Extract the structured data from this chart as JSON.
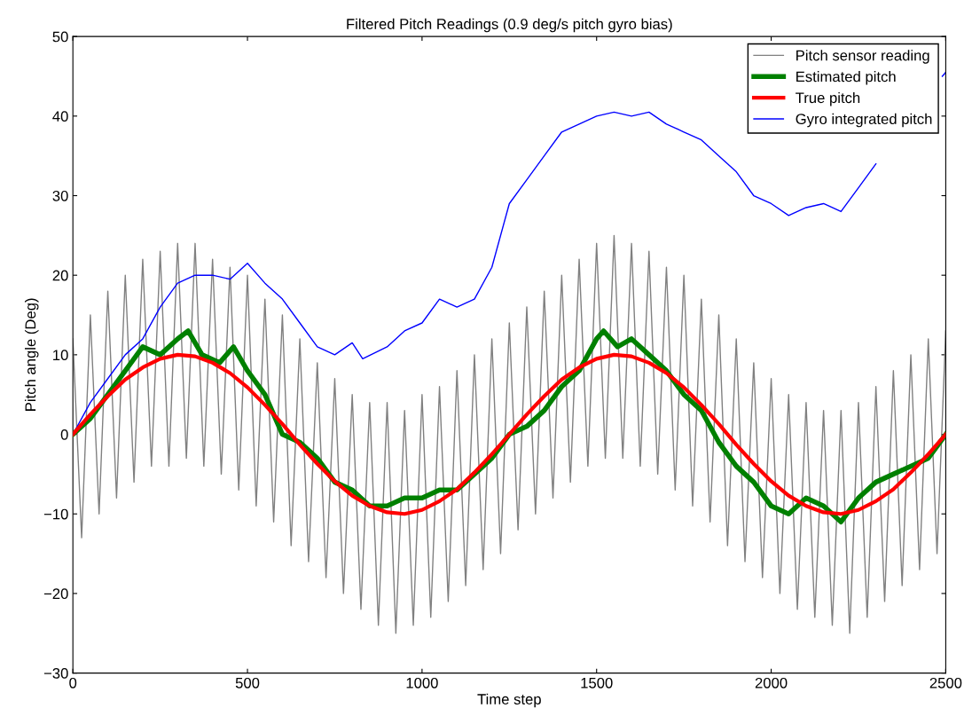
{
  "chart_data": {
    "type": "line",
    "title": "Filtered Pitch Readings (0.9 deg/s pitch gyro bias)",
    "xlabel": "Time step",
    "ylabel": "Pitch angle (Deg)",
    "xlim": [
      0,
      2500
    ],
    "xticks": [
      0,
      500,
      1000,
      1500,
      2000,
      2500
    ],
    "ylim": [
      -30,
      50
    ],
    "yticks": [
      {
        "value": -30,
        "label": "−30"
      },
      {
        "value": -20,
        "label": "−20"
      },
      {
        "value": -10,
        "label": "−10"
      },
      0,
      10,
      20,
      30,
      40,
      50
    ],
    "grid": false,
    "legend": "top right",
    "marker": "none",
    "line_style": "solid",
    "series": [
      {
        "name": "Pitch sensor reading",
        "color": "#808080",
        "x": [
          0,
          25,
          50,
          75,
          100,
          125,
          150,
          175,
          200,
          225,
          250,
          275,
          300,
          325,
          350,
          375,
          400,
          425,
          450,
          475,
          500,
          525,
          550,
          575,
          600,
          625,
          650,
          675,
          700,
          725,
          750,
          775,
          800,
          825,
          850,
          875,
          900,
          925,
          950,
          975,
          1000,
          1025,
          1050,
          1075,
          1100,
          1125,
          1150,
          1175,
          1200,
          1225,
          1250,
          1275,
          1300,
          1325,
          1350,
          1375,
          1400,
          1425,
          1450,
          1475,
          1500,
          1525,
          1550,
          1575,
          1600,
          1625,
          1650,
          1675,
          1700,
          1725,
          1750,
          1775,
          1800,
          1825,
          1850,
          1875,
          1900,
          1925,
          1950,
          1975,
          2000,
          2025,
          2050,
          2075,
          2100,
          2125,
          2150,
          2175,
          2200,
          2225,
          2250,
          2275,
          2300,
          2325,
          2350,
          2375,
          2400,
          2425,
          2450,
          2475,
          2500
        ],
        "values": [
          12,
          -13,
          15,
          -10,
          18,
          -8,
          20,
          -6,
          22,
          -4,
          23,
          -4,
          24,
          -3,
          24,
          -4,
          22,
          -5,
          21,
          -7,
          20,
          -9,
          17,
          -11,
          15,
          -14,
          12,
          -16,
          9,
          -18,
          7,
          -20,
          5,
          -22,
          4,
          -24,
          4,
          -25,
          3,
          -24,
          5,
          -23,
          6,
          -21,
          8,
          -19,
          10,
          -17,
          12,
          -15,
          14,
          -12,
          16,
          -10,
          18,
          -8,
          20,
          -6,
          22,
          -4,
          24,
          -3,
          25,
          -3,
          24,
          -4,
          23,
          -5,
          21,
          -7,
          20,
          -9,
          17,
          -11,
          15,
          -14,
          12,
          -16,
          9,
          -18,
          7,
          -20,
          5,
          -22,
          4,
          -23,
          3,
          -24,
          3,
          -25,
          4,
          -23,
          6,
          -21,
          8,
          -19,
          10,
          -17,
          12,
          -15,
          13
        ]
      },
      {
        "name": "Estimated pitch",
        "color": "#008000",
        "x": [
          0,
          50,
          100,
          150,
          200,
          250,
          300,
          330,
          370,
          420,
          460,
          500,
          550,
          600,
          650,
          700,
          750,
          800,
          850,
          900,
          950,
          1000,
          1050,
          1100,
          1150,
          1200,
          1250,
          1300,
          1350,
          1400,
          1450,
          1500,
          1520,
          1560,
          1600,
          1650,
          1700,
          1750,
          1800,
          1850,
          1900,
          1950,
          2000,
          2050,
          2100,
          2150,
          2200,
          2250,
          2300,
          2350,
          2400,
          2450,
          2500
        ],
        "values": [
          0,
          2,
          5,
          8,
          11,
          10,
          12,
          13,
          10,
          9,
          11,
          8,
          5,
          0,
          -1,
          -3,
          -6,
          -7,
          -9,
          -9,
          -8,
          -8,
          -7,
          -7,
          -5,
          -3,
          0,
          1,
          3,
          6,
          8,
          12,
          13,
          11,
          12,
          10,
          8,
          5,
          3,
          -1,
          -4,
          -6,
          -9,
          -10,
          -8,
          -9,
          -11,
          -8,
          -6,
          -5,
          -4,
          -3,
          0
        ]
      },
      {
        "name": "True pitch",
        "color": "#ff0000",
        "x": [
          0,
          50,
          100,
          150,
          200,
          250,
          300,
          350,
          400,
          450,
          500,
          550,
          600,
          650,
          700,
          750,
          800,
          850,
          900,
          950,
          1000,
          1050,
          1100,
          1150,
          1200,
          1250,
          1300,
          1350,
          1400,
          1450,
          1500,
          1550,
          1600,
          1650,
          1700,
          1750,
          1800,
          1850,
          1900,
          1950,
          2000,
          2050,
          2100,
          2150,
          2200,
          2250,
          2300,
          2350,
          2400,
          2450,
          2500
        ],
        "values": [
          0,
          2.5,
          4.8,
          6.9,
          8.4,
          9.5,
          10,
          9.8,
          9,
          7.7,
          5.9,
          3.7,
          1.3,
          -1.3,
          -3.7,
          -5.9,
          -7.7,
          -9,
          -9.8,
          -10,
          -9.5,
          -8.4,
          -6.9,
          -4.8,
          -2.5,
          0,
          2.5,
          4.8,
          6.9,
          8.4,
          9.5,
          10,
          9.8,
          9,
          7.7,
          5.9,
          3.7,
          1.3,
          -1.3,
          -3.7,
          -5.9,
          -7.7,
          -9,
          -9.8,
          -10,
          -9.5,
          -8.4,
          -6.9,
          -4.8,
          -2.5,
          0
        ]
      },
      {
        "name": "Gyro integrated pitch",
        "color": "#0000ff",
        "x": [
          0,
          50,
          100,
          150,
          200,
          250,
          300,
          350,
          400,
          450,
          500,
          550,
          600,
          650,
          700,
          750,
          800,
          830,
          900,
          950,
          1000,
          1050,
          1100,
          1150,
          1200,
          1250,
          1300,
          1350,
          1400,
          1450,
          1500,
          1550,
          1600,
          1650,
          1700,
          1750,
          1800,
          1850,
          1900,
          1950,
          2000,
          2050,
          2100,
          2150,
          2200,
          2250,
          2300,
          2350,
          2400,
          2450,
          2490,
          2500
        ],
        "values": [
          0,
          4,
          7,
          10,
          12,
          16,
          19,
          20,
          20,
          19.5,
          21.5,
          19,
          17,
          14,
          11,
          10,
          11.5,
          9.5,
          11,
          13,
          14,
          17,
          16,
          17,
          21,
          29,
          32,
          35,
          38,
          39,
          40,
          40.5,
          40,
          40.5,
          39,
          38,
          37,
          35,
          33,
          30,
          29,
          27.5,
          28.5,
          29,
          28,
          31,
          34,
          null,
          null,
          null,
          45,
          45.5
        ]
      }
    ]
  }
}
